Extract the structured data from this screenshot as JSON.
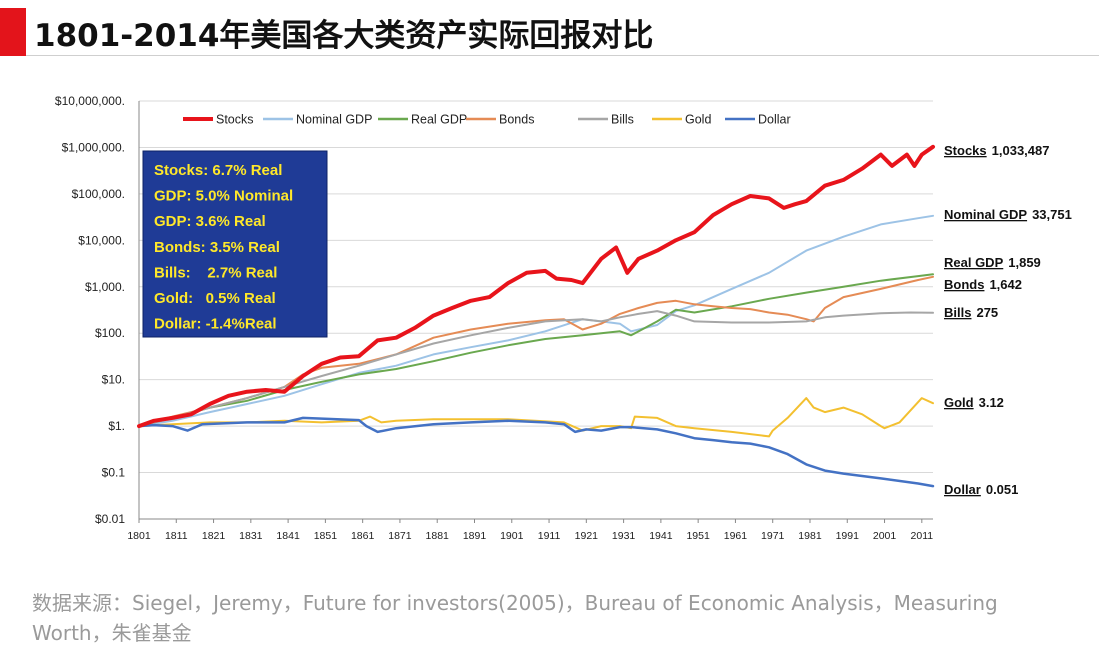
{
  "header": {
    "title": "1801-2014年美国各大类资产实际回报对比",
    "accent_color": "#e3141b",
    "rule_color": "#cfcfcf"
  },
  "chart_data": {
    "type": "line",
    "y_scale": "log",
    "ylim": [
      0.01,
      10000000
    ],
    "xlim": [
      1801,
      2014
    ],
    "y_ticks": [
      {
        "value": 10000000,
        "label": "$10,000,000."
      },
      {
        "value": 1000000,
        "label": "$1,000,000."
      },
      {
        "value": 100000,
        "label": "$100,000."
      },
      {
        "value": 10000,
        "label": "$10,000."
      },
      {
        "value": 1000,
        "label": "$1,000."
      },
      {
        "value": 100,
        "label": "$100."
      },
      {
        "value": 10,
        "label": "$10."
      },
      {
        "value": 1,
        "label": "$1."
      },
      {
        "value": 0.1,
        "label": "$0.1"
      },
      {
        "value": 0.01,
        "label": "$0.01"
      }
    ],
    "x_ticks": [
      1801,
      1811,
      1821,
      1831,
      1841,
      1851,
      1861,
      1871,
      1881,
      1891,
      1901,
      1911,
      1921,
      1931,
      1941,
      1951,
      1961,
      1971,
      1981,
      1991,
      2001,
      2011
    ],
    "grid": true,
    "legend_position": "top",
    "series": [
      {
        "name": "Stocks",
        "color": "#e8141b",
        "width": 4,
        "x": [
          1801,
          1805,
          1810,
          1815,
          1820,
          1825,
          1830,
          1835,
          1840,
          1845,
          1850,
          1855,
          1860,
          1865,
          1870,
          1875,
          1880,
          1885,
          1890,
          1895,
          1900,
          1905,
          1910,
          1913,
          1917,
          1920,
          1925,
          1929,
          1932,
          1935,
          1940,
          1945,
          1950,
          1955,
          1960,
          1965,
          1970,
          1974,
          1977,
          1980,
          1985,
          1990,
          1995,
          2000,
          2003,
          2007,
          2009,
          2011,
          2014
        ],
        "y": [
          1,
          1.3,
          1.5,
          1.8,
          3,
          4.5,
          5.5,
          6,
          5.5,
          12,
          22,
          30,
          32,
          70,
          80,
          130,
          240,
          350,
          500,
          600,
          1200,
          2000,
          2200,
          1500,
          1400,
          1200,
          4000,
          7000,
          2000,
          4000,
          6000,
          10000,
          15000,
          35000,
          60000,
          90000,
          80000,
          50000,
          60000,
          70000,
          150000,
          200000,
          350000,
          700000,
          400000,
          700000,
          400000,
          700000,
          1033487
        ],
        "end_label": "Stocks",
        "end_value": "1,033,487"
      },
      {
        "name": "Nominal GDP",
        "color": "#9dc3e6",
        "width": 2,
        "x": [
          1801,
          1810,
          1820,
          1830,
          1840,
          1850,
          1860,
          1870,
          1880,
          1890,
          1900,
          1910,
          1920,
          1925,
          1930,
          1933,
          1940,
          1945,
          1950,
          1960,
          1970,
          1980,
          1990,
          2000,
          2010,
          2014
        ],
        "y": [
          1,
          1.3,
          2,
          3,
          4.5,
          8,
          14,
          20,
          35,
          50,
          70,
          110,
          200,
          180,
          160,
          110,
          150,
          300,
          400,
          900,
          2000,
          6000,
          12000,
          22000,
          30000,
          33751
        ],
        "end_label": "Nominal GDP",
        "end_value": "33,751"
      },
      {
        "name": "Real GDP",
        "color": "#6aa84f",
        "width": 2,
        "x": [
          1801,
          1810,
          1820,
          1830,
          1840,
          1850,
          1860,
          1870,
          1880,
          1890,
          1900,
          1910,
          1920,
          1930,
          1933,
          1940,
          1945,
          1950,
          1960,
          1970,
          1980,
          1990,
          2000,
          2010,
          2014
        ],
        "y": [
          1,
          1.5,
          2.5,
          3.5,
          6,
          9,
          13,
          17,
          25,
          38,
          55,
          75,
          90,
          110,
          90,
          180,
          320,
          280,
          380,
          550,
          750,
          1000,
          1350,
          1700,
          1859
        ],
        "end_label": "Real GDP",
        "end_value": "1,859"
      },
      {
        "name": "Bonds",
        "color": "#e58b55",
        "width": 2,
        "x": [
          1801,
          1810,
          1820,
          1830,
          1840,
          1845,
          1850,
          1860,
          1870,
          1880,
          1890,
          1900,
          1910,
          1915,
          1920,
          1925,
          1930,
          1935,
          1940,
          1945,
          1950,
          1955,
          1960,
          1965,
          1970,
          1975,
          1980,
          1982,
          1985,
          1990,
          2000,
          2010,
          2014
        ],
        "y": [
          1,
          1.6,
          2.5,
          4,
          7,
          13,
          18,
          22,
          35,
          80,
          120,
          160,
          190,
          200,
          120,
          160,
          260,
          350,
          450,
          500,
          420,
          380,
          350,
          330,
          280,
          250,
          200,
          180,
          350,
          600,
          900,
          1400,
          1642
        ],
        "end_label": "Bonds",
        "end_value": "1,642"
      },
      {
        "name": "Bills",
        "color": "#a6a6a6",
        "width": 2,
        "x": [
          1801,
          1810,
          1820,
          1830,
          1840,
          1850,
          1860,
          1870,
          1880,
          1890,
          1900,
          1910,
          1920,
          1925,
          1930,
          1935,
          1940,
          1945,
          1950,
          1960,
          1970,
          1980,
          1985,
          1990,
          2000,
          2008,
          2014
        ],
        "y": [
          1,
          1.5,
          2.5,
          4,
          7,
          12,
          20,
          35,
          60,
          90,
          130,
          180,
          200,
          180,
          220,
          260,
          300,
          240,
          180,
          170,
          170,
          180,
          220,
          240,
          270,
          280,
          275
        ],
        "end_label": "Bills",
        "end_value": "275"
      },
      {
        "name": "Gold",
        "color": "#f3c030",
        "width": 2,
        "x": [
          1801,
          1810,
          1820,
          1830,
          1840,
          1850,
          1860,
          1863,
          1866,
          1870,
          1880,
          1900,
          1915,
          1920,
          1925,
          1930,
          1933,
          1934,
          1940,
          1945,
          1950,
          1960,
          1970,
          1971,
          1975,
          1980,
          1982,
          1985,
          1990,
          1995,
          2000,
          2001,
          2005,
          2011,
          2014
        ],
        "y": [
          1,
          1.1,
          1.2,
          1.2,
          1.3,
          1.2,
          1.3,
          1.6,
          1.2,
          1.3,
          1.4,
          1.4,
          1.2,
          0.8,
          1.0,
          1.0,
          0.9,
          1.6,
          1.5,
          1.0,
          0.9,
          0.75,
          0.6,
          0.8,
          1.5,
          4,
          2.5,
          2.0,
          2.5,
          1.8,
          1.0,
          0.9,
          1.2,
          4.0,
          3.12
        ],
        "end_label": "Gold",
        "end_value": "3.12"
      },
      {
        "name": "Dollar",
        "color": "#4472c4",
        "width": 2.5,
        "x": [
          1801,
          1805,
          1810,
          1814,
          1818,
          1830,
          1840,
          1845,
          1860,
          1862,
          1865,
          1870,
          1880,
          1890,
          1900,
          1910,
          1915,
          1918,
          1921,
          1925,
          1930,
          1933,
          1940,
          1945,
          1950,
          1955,
          1960,
          1965,
          1970,
          1975,
          1980,
          1985,
          1990,
          2000,
          2010,
          2014
        ],
        "y": [
          1,
          1.05,
          1.0,
          0.8,
          1.1,
          1.2,
          1.2,
          1.5,
          1.35,
          1.0,
          0.75,
          0.9,
          1.1,
          1.2,
          1.3,
          1.2,
          1.1,
          0.75,
          0.85,
          0.8,
          0.95,
          0.95,
          0.85,
          0.7,
          0.55,
          0.5,
          0.45,
          0.42,
          0.35,
          0.25,
          0.15,
          0.11,
          0.095,
          0.075,
          0.058,
          0.051
        ],
        "end_label": "Dollar",
        "end_value": "0.051"
      }
    ],
    "annotation_box": {
      "bg_color": "#1f3b96",
      "text_color": "#ffe82a",
      "lines": [
        "Stocks: 6.7% Real",
        "GDP: 5.0% Nominal",
        "GDP: 3.6% Real",
        "Bonds: 3.5% Real",
        "Bills:    2.7% Real",
        "Gold:   0.5% Real",
        "Dollar: -1.4%Real"
      ]
    }
  },
  "source_text": "数据来源：Siegel，Jeremy，Future for investors(2005)，Bureau of Economic Analysis，Measuring Worth，朱雀基金"
}
